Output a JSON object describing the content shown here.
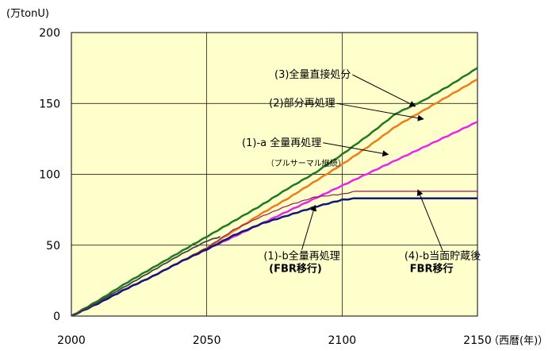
{
  "chart_data": {
    "type": "line",
    "title": "",
    "ylabel": "(万tonU)",
    "xlabel": "（西暦(年)）",
    "xlim": [
      2000,
      2150
    ],
    "ylim": [
      0,
      200
    ],
    "xticks": [
      2000,
      2050,
      2100,
      2150
    ],
    "yticks": [
      0,
      50,
      100,
      150,
      200
    ],
    "grid": true,
    "plot_background": "#ffffcc",
    "series": [
      {
        "key": "s3",
        "color": "#1f7a1f",
        "width": 2.5,
        "points": [
          [
            2000,
            0
          ],
          [
            2010,
            11
          ],
          [
            2020,
            23
          ],
          [
            2030,
            34
          ],
          [
            2040,
            45
          ],
          [
            2050,
            56
          ],
          [
            2060,
            67
          ],
          [
            2070,
            78
          ],
          [
            2080,
            90
          ],
          [
            2090,
            101
          ],
          [
            2100,
            114
          ],
          [
            2110,
            128
          ],
          [
            2120,
            143
          ],
          [
            2130,
            152
          ],
          [
            2140,
            163
          ],
          [
            2150,
            175
          ]
        ]
      },
      {
        "key": "s2",
        "color": "#f07b1b",
        "width": 2.5,
        "points": [
          [
            2000,
            0
          ],
          [
            2010,
            9
          ],
          [
            2020,
            19
          ],
          [
            2030,
            28
          ],
          [
            2040,
            38
          ],
          [
            2050,
            48
          ],
          [
            2060,
            60
          ],
          [
            2070,
            72
          ],
          [
            2080,
            83
          ],
          [
            2090,
            95
          ],
          [
            2100,
            107
          ],
          [
            2110,
            120
          ],
          [
            2120,
            134
          ],
          [
            2130,
            145
          ],
          [
            2140,
            156
          ],
          [
            2150,
            167
          ]
        ]
      },
      {
        "key": "s1a",
        "color": "#ee22ee",
        "width": 2.5,
        "points": [
          [
            2000,
            0
          ],
          [
            2010,
            9
          ],
          [
            2020,
            19
          ],
          [
            2030,
            28
          ],
          [
            2040,
            38
          ],
          [
            2050,
            47
          ],
          [
            2060,
            56
          ],
          [
            2070,
            65
          ],
          [
            2080,
            74
          ],
          [
            2090,
            83
          ],
          [
            2100,
            92
          ],
          [
            2110,
            101
          ],
          [
            2120,
            110
          ],
          [
            2130,
            119
          ],
          [
            2140,
            128
          ],
          [
            2150,
            137
          ]
        ]
      },
      {
        "key": "s4b",
        "color": "#8b1a5c",
        "width": 1.2,
        "points": [
          [
            2000,
            0
          ],
          [
            2010,
            9
          ],
          [
            2020,
            19
          ],
          [
            2030,
            28
          ],
          [
            2040,
            38
          ],
          [
            2050,
            48
          ],
          [
            2060,
            61
          ],
          [
            2070,
            70
          ],
          [
            2080,
            78
          ],
          [
            2090,
            84
          ],
          [
            2100,
            86
          ],
          [
            2105,
            88
          ],
          [
            2110,
            88
          ],
          [
            2150,
            88
          ]
        ]
      },
      {
        "key": "s1b",
        "color": "#101a7a",
        "width": 2.5,
        "points": [
          [
            2000,
            0
          ],
          [
            2010,
            9
          ],
          [
            2020,
            19
          ],
          [
            2030,
            28
          ],
          [
            2040,
            38
          ],
          [
            2050,
            47
          ],
          [
            2060,
            57
          ],
          [
            2070,
            65
          ],
          [
            2080,
            71
          ],
          [
            2090,
            77
          ],
          [
            2100,
            82
          ],
          [
            2105,
            83
          ],
          [
            2110,
            83
          ],
          [
            2150,
            83
          ]
        ]
      },
      {
        "key": "sgray",
        "color": "#444444",
        "width": 1.8,
        "points": [
          [
            2000,
            0
          ],
          [
            2010,
            10
          ],
          [
            2020,
            21
          ],
          [
            2030,
            32
          ],
          [
            2040,
            43
          ],
          [
            2050,
            53
          ],
          [
            2055,
            56
          ]
        ]
      }
    ],
    "annotations": [
      {
        "key": "a3",
        "text": "(3)全量直接処分",
        "class": "ann",
        "x": 2075,
        "y": 168,
        "arrow_to": [
          2127,
          148
        ]
      },
      {
        "key": "a2",
        "text": "(2)部分再処理",
        "class": "ann",
        "x": 2073,
        "y": 148,
        "arrow_to": [
          2130,
          139
        ]
      },
      {
        "key": "a1a",
        "text": "(1)-a 全量再処理",
        "class": "ann",
        "x": 2063,
        "y": 120,
        "arrow_to": [
          2117,
          114
        ]
      },
      {
        "key": "a1a_sub",
        "text": "（プルサーマル継続）",
        "class": "ann-small",
        "x": 2072,
        "y": 106
      },
      {
        "key": "a1b",
        "text": "(1)-b全量再処理",
        "class": "ann",
        "x": 2071,
        "y": 40,
        "arrow_to": [
          2090,
          78
        ]
      },
      {
        "key": "a1b_sub",
        "text": "(FBR移行)",
        "class": "ann-bold",
        "x": 2073,
        "y": 31
      },
      {
        "key": "a4b",
        "text": "(4)-b当面貯蔵後",
        "class": "ann",
        "x": 2123,
        "y": 40,
        "arrow_to": [
          2128,
          89
        ]
      },
      {
        "key": "a4b_sub",
        "text": "FBR移行",
        "class": "ann-bold",
        "x": 2125,
        "y": 31
      }
    ]
  }
}
